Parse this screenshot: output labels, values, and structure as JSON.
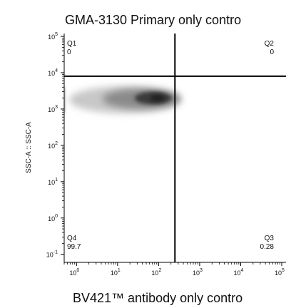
{
  "chart_data": {
    "type": "scatter",
    "subtype": "flow-cytometry density plot with quadrant gates",
    "title": "GMA-3130 Primary only contro",
    "xlabel": "BV421™ antibody only contro",
    "ylabel": "SSC-A :: SSC-A",
    "x_scale": "log",
    "y_scale": "log",
    "xlim": [
      0.5,
      100000
    ],
    "ylim": [
      0.06,
      120000
    ],
    "x_ticks": [
      {
        "value": 1,
        "label": "10",
        "exp": "0"
      },
      {
        "value": 10,
        "label": "10",
        "exp": "1"
      },
      {
        "value": 100,
        "label": "10",
        "exp": "2"
      },
      {
        "value": 1000,
        "label": "10",
        "exp": "3"
      },
      {
        "value": 10000,
        "label": "10",
        "exp": "4"
      },
      {
        "value": 100000,
        "label": "10",
        "exp": "5"
      }
    ],
    "y_ticks": [
      {
        "value": 0.1,
        "label": "10",
        "exp": "-1"
      },
      {
        "value": 1,
        "label": "10",
        "exp": "0"
      },
      {
        "value": 10,
        "label": "10",
        "exp": "1"
      },
      {
        "value": 100,
        "label": "10",
        "exp": "2"
      },
      {
        "value": 1000,
        "label": "10",
        "exp": "3"
      },
      {
        "value": 10000,
        "label": "10",
        "exp": "4"
      },
      {
        "value": 100000,
        "label": "10",
        "exp": "5"
      }
    ],
    "gates": {
      "x": 250,
      "y": 8000
    },
    "quadrants": [
      {
        "id": "Q1",
        "percent": "0",
        "corner": "top-left"
      },
      {
        "id": "Q2",
        "percent": "0",
        "corner": "top-right"
      },
      {
        "id": "Q3",
        "percent": "0.28",
        "corner": "bottom-right"
      },
      {
        "id": "Q4",
        "percent": "99.7",
        "corner": "bottom-left"
      }
    ],
    "population": {
      "x_range": [
        0.5,
        250
      ],
      "y_center": 1800,
      "peak_x": 80,
      "peak_y": 2000
    },
    "colors": {
      "density": "#202020",
      "gate": "#000000",
      "axis": "#000000"
    }
  }
}
